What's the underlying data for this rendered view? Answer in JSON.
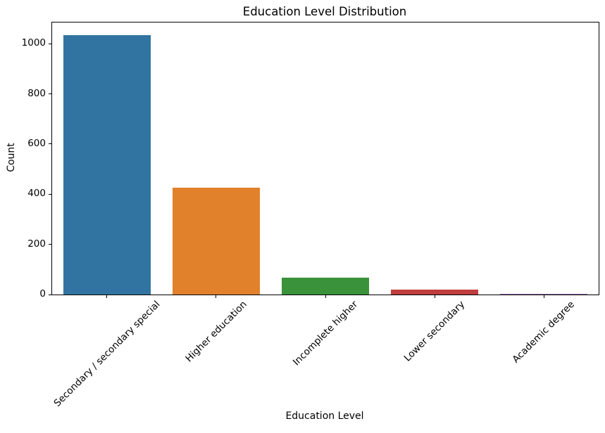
{
  "figure": {
    "background": "#ffffff",
    "text_color": "#000000",
    "spine_color": "#000000"
  },
  "chart_data": {
    "type": "bar",
    "title": "Education Level Distribution",
    "xlabel": "Education Level",
    "ylabel": "Count",
    "categories": [
      "Secondary / secondary special",
      "Higher education",
      "Incomplete higher",
      "Lower secondary",
      "Academic degree"
    ],
    "values": [
      1034,
      425,
      68,
      21,
      4
    ],
    "bar_colors": [
      "#3274a1",
      "#e1812c",
      "#3a923a",
      "#c03d3e",
      "#9372b2"
    ],
    "ylim": [
      0,
      1085
    ],
    "yticks": [
      0,
      200,
      400,
      600,
      800,
      1000
    ],
    "x_tick_rotation": 45,
    "grid": false,
    "legend_position": "none"
  }
}
